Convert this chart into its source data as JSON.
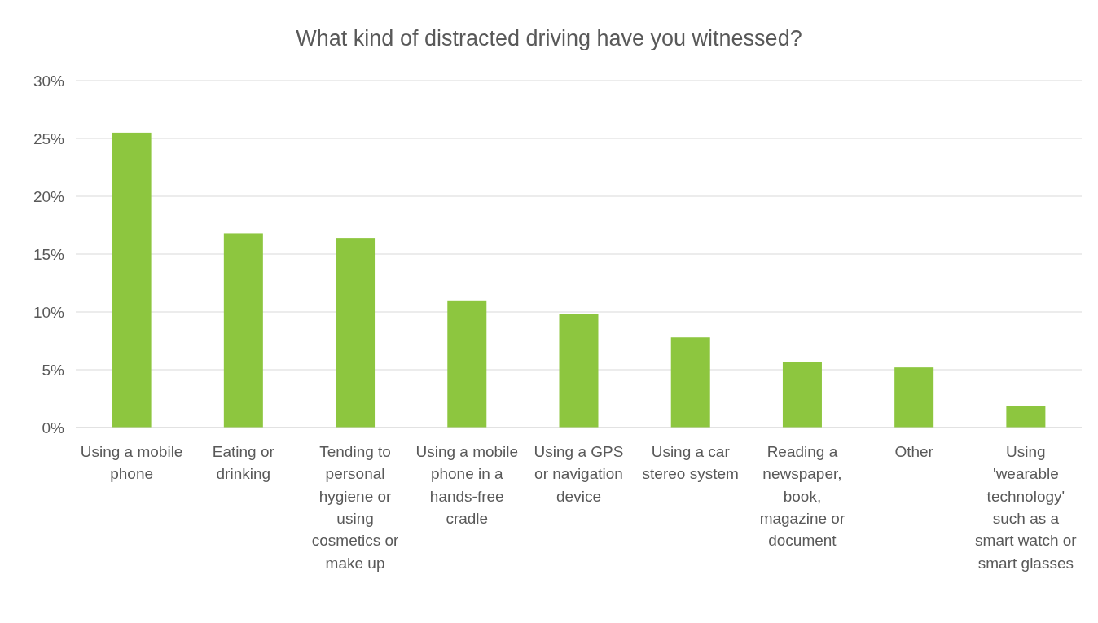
{
  "chart_data": {
    "type": "bar",
    "title": "What kind of distracted driving have you witnessed?",
    "categories": [
      "Using a mobile phone",
      "Eating or drinking",
      "Tending to personal hygiene or using cosmetics or make up",
      "Using a mobile phone in a hands-free cradle",
      "Using a GPS or navigation device",
      "Using a car stereo system",
      "Reading a newspaper, book, magazine or document",
      "Other",
      "Using 'wearable technology' such as a smart watch or smart glasses"
    ],
    "values": [
      25.5,
      16.8,
      16.4,
      11.0,
      9.8,
      7.8,
      5.7,
      5.2,
      1.9
    ],
    "color": "#8dc63f",
    "ylim": [
      0,
      30
    ],
    "yticks": [
      {
        "value": 0,
        "label": "0%"
      },
      {
        "value": 5,
        "label": "5%"
      },
      {
        "value": 10,
        "label": "10%"
      },
      {
        "value": 15,
        "label": "15%"
      },
      {
        "value": 20,
        "label": "20%"
      },
      {
        "value": 25,
        "label": "25%"
      },
      {
        "value": 30,
        "label": "30%"
      }
    ],
    "grid": "y"
  }
}
